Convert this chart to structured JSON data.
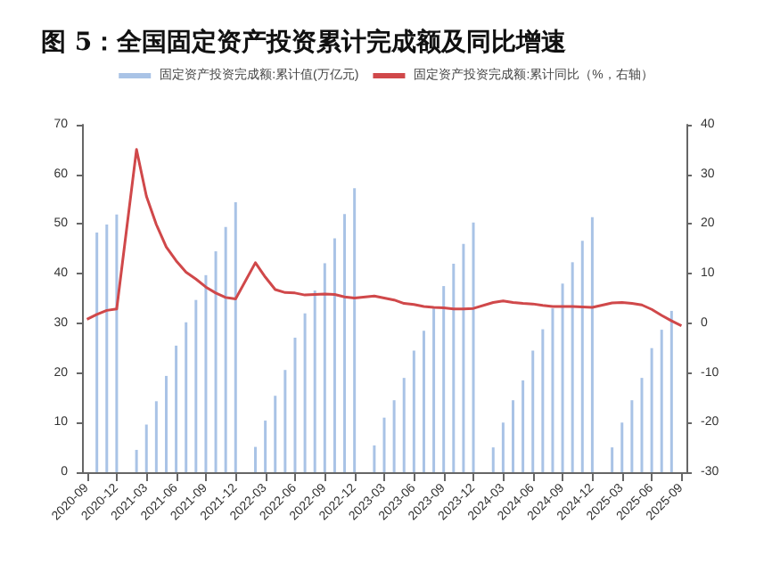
{
  "chart_data": {
    "type": "bar",
    "title": "图 5：全国固定资产投资累计完成额及同比增速",
    "categories": [
      "2020-09",
      null,
      null,
      "2020-12",
      null,
      null,
      "2021-03",
      null,
      null,
      "2021-06",
      null,
      null,
      "2021-09",
      null,
      null,
      "2021-12",
      null,
      null,
      "2022-03",
      null,
      null,
      "2022-06",
      null,
      null,
      "2022-09",
      null,
      null,
      "2022-12",
      null,
      null,
      "2023-03",
      null,
      null,
      "2023-06",
      null,
      null,
      "2023-09",
      null,
      null,
      "2023-12",
      null,
      null,
      "2024-03",
      null,
      null,
      "2024-06",
      null,
      null,
      "2024-09",
      null,
      null,
      "2024-12",
      null,
      null,
      "2025-03",
      null,
      null,
      "2025-06",
      null,
      null,
      "2025-09"
    ],
    "series": [
      {
        "name": "固定资产投资完成额:累计值(万亿元)",
        "color": "#a9c3e6",
        "values": [
          null,
          48.3,
          49.9,
          51.9,
          null,
          4.5,
          9.6,
          14.3,
          19.4,
          25.5,
          30.2,
          34.7,
          39.7,
          44.5,
          49.4,
          54.4,
          null,
          5.1,
          10.4,
          15.4,
          20.6,
          27.1,
          32.0,
          36.6,
          42.1,
          47.1,
          52.0,
          57.2,
          null,
          5.4,
          11.0,
          14.5,
          19.0,
          24.5,
          28.5,
          33.0,
          37.5,
          42.0,
          46.0,
          50.3,
          null,
          5.0,
          10.0,
          14.5,
          18.5,
          24.5,
          28.8,
          33.0,
          38.0,
          42.3,
          46.6,
          51.4,
          null,
          5.0,
          10.0,
          14.5,
          19.0,
          25.0,
          28.7,
          32.5,
          null
        ]
      },
      {
        "name": "固定资产投资完成额:累计同比（%，右轴）",
        "type": "line",
        "axis": "y2",
        "color": "#d0484a",
        "values": [
          0.8,
          1.8,
          2.6,
          2.9,
          null,
          35.0,
          25.6,
          19.9,
          15.4,
          12.6,
          10.3,
          8.9,
          7.3,
          6.1,
          5.2,
          4.9,
          null,
          12.2,
          9.3,
          6.8,
          6.2,
          6.1,
          5.7,
          5.8,
          5.9,
          5.8,
          5.3,
          5.1,
          null,
          5.5,
          5.1,
          4.7,
          4.0,
          3.8,
          3.4,
          3.2,
          3.1,
          2.9,
          2.9,
          3.0,
          null,
          4.2,
          4.5,
          4.2,
          4.0,
          3.9,
          3.6,
          3.4,
          3.4,
          3.4,
          3.3,
          3.2,
          null,
          4.1,
          4.2,
          4.0,
          3.7,
          2.8,
          1.6,
          0.5,
          -0.5
        ]
      }
    ],
    "ylim": [
      0,
      70
    ],
    "yticks": [
      0,
      10,
      20,
      30,
      40,
      50,
      60,
      70
    ],
    "y2lim": [
      -30,
      40
    ],
    "y2ticks": [
      -30,
      -20,
      -10,
      0,
      10,
      20,
      30,
      40
    ],
    "legend": "top",
    "grid": false,
    "marker": "none",
    "line_style": "solid"
  }
}
